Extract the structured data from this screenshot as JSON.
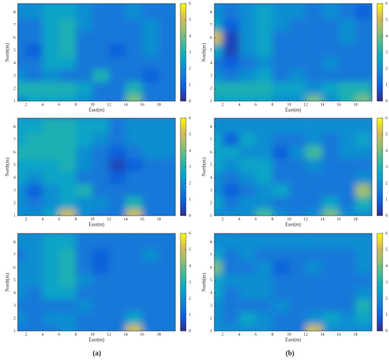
{
  "panel_labels": [
    "(a)",
    "(b)"
  ],
  "chart_data": [
    {
      "type": "heatmap",
      "xlabel": "East(m)",
      "ylabel": "North(m)",
      "x": [
        1,
        3,
        5,
        7,
        9,
        11,
        13,
        15,
        17,
        19
      ],
      "y": [
        1,
        2,
        3,
        4,
        5,
        6,
        7,
        8
      ],
      "xlim": [
        1,
        20
      ],
      "ylim": [
        1,
        8.7
      ],
      "xticks": [
        2,
        4,
        6,
        8,
        10,
        12,
        14,
        16,
        18
      ],
      "yticks": [
        1,
        2,
        3,
        4,
        5,
        6,
        7,
        8
      ],
      "clim": [
        0,
        6
      ],
      "cticks": [
        0,
        1,
        2,
        3,
        4,
        5,
        6
      ],
      "values": [
        [
          2,
          2.5,
          2.5,
          2.5,
          2,
          1.5,
          1.5,
          4,
          1.5,
          1.5
        ],
        [
          3,
          3,
          3,
          3,
          2.5,
          1.5,
          1.5,
          3,
          1.5,
          1.5
        ],
        [
          2,
          1.5,
          2,
          1.5,
          1.5,
          3,
          1.5,
          1.5,
          1,
          1.5
        ],
        [
          1.5,
          1.5,
          2.5,
          2.5,
          1.5,
          1.5,
          1.5,
          1.5,
          1.5,
          1.5
        ],
        [
          1.5,
          1,
          2.5,
          3,
          1.5,
          1.5,
          1,
          1.5,
          2,
          1.5
        ],
        [
          1.5,
          1.5,
          2.5,
          3,
          1.5,
          1.5,
          1.5,
          1.5,
          2,
          1.5
        ],
        [
          1.5,
          1.5,
          2.5,
          3,
          2,
          1.5,
          1.5,
          1.5,
          2,
          1.5
        ],
        [
          2,
          2,
          2.5,
          2.5,
          2,
          1.5,
          1.5,
          2,
          1.5,
          1.5
        ]
      ]
    },
    {
      "type": "heatmap",
      "xlabel": "East(m)",
      "ylabel": "North(m)",
      "x": [
        1,
        3,
        5,
        7,
        9,
        11,
        13,
        15,
        17,
        19
      ],
      "y": [
        1,
        2,
        3,
        4,
        5,
        6,
        7,
        8
      ],
      "xlim": [
        1,
        20
      ],
      "ylim": [
        1,
        8.7
      ],
      "xticks": [
        2,
        4,
        6,
        8,
        10,
        12,
        14,
        16,
        18
      ],
      "yticks": [
        1,
        2,
        3,
        4,
        5,
        6,
        7,
        8
      ],
      "clim": [
        0,
        6
      ],
      "cticks": [
        0,
        1,
        2,
        3,
        4,
        5,
        6
      ],
      "values": [
        [
          2.5,
          2.5,
          2.5,
          2.5,
          2,
          2,
          4,
          2,
          3,
          4
        ],
        [
          3,
          3,
          3,
          3,
          2.5,
          2.5,
          2,
          2.5,
          3,
          3
        ],
        [
          2,
          1.5,
          2,
          2.5,
          1.5,
          2,
          1.5,
          1.5,
          1.5,
          1.5
        ],
        [
          1.5,
          1,
          1.5,
          2,
          1.5,
          1.5,
          1.5,
          2,
          1.5,
          1.5
        ],
        [
          2.5,
          0.5,
          2,
          2.5,
          1.5,
          1.5,
          1.5,
          1.5,
          1.5,
          1.5
        ],
        [
          5,
          0.5,
          2,
          2.5,
          1.5,
          1.5,
          1.5,
          1.5,
          2,
          1.5
        ],
        [
          2.5,
          1,
          2,
          2.5,
          2,
          1.5,
          1.5,
          1.5,
          2,
          1.5
        ],
        [
          2,
          1.5,
          2,
          2.5,
          2,
          2,
          1.5,
          2,
          1.5,
          1
        ]
      ]
    },
    {
      "type": "heatmap",
      "xlabel": "East(m)",
      "ylabel": "North(m)",
      "x": [
        1,
        3,
        5,
        7,
        9,
        11,
        13,
        15,
        17,
        19
      ],
      "y": [
        1,
        2,
        3,
        4,
        5,
        6,
        7,
        8
      ],
      "xlim": [
        1,
        20
      ],
      "ylim": [
        1,
        8.7
      ],
      "xticks": [
        2,
        4,
        6,
        8,
        10,
        12,
        14,
        16,
        18
      ],
      "yticks": [
        1,
        2,
        3,
        4,
        5,
        6,
        7,
        8
      ],
      "clim": [
        0,
        6
      ],
      "cticks": [
        0,
        1,
        2,
        3,
        4,
        5,
        6
      ],
      "values": [
        [
          2,
          2,
          2.5,
          5,
          2,
          1.5,
          1.5,
          5,
          1.5,
          1.5
        ],
        [
          2,
          1.5,
          2,
          2.5,
          2,
          2,
          1.5,
          3,
          1.5,
          1.5
        ],
        [
          2,
          1,
          2,
          2.5,
          3,
          1.5,
          1.5,
          1.5,
          1.5,
          1.5
        ],
        [
          2.5,
          2,
          2.5,
          2.5,
          1.5,
          1.5,
          1,
          1.5,
          1.5,
          1.5
        ],
        [
          2.5,
          2.5,
          2.5,
          3,
          2,
          1.5,
          0.5,
          1,
          1.5,
          1.5
        ],
        [
          3,
          3,
          3,
          3,
          2,
          1.5,
          1,
          1.5,
          2,
          2
        ],
        [
          2.5,
          3,
          3,
          3,
          2.5,
          2,
          1.5,
          2,
          2,
          2
        ],
        [
          2.5,
          2.5,
          3,
          3,
          2.5,
          2.5,
          1.5,
          2,
          2,
          2
        ]
      ]
    },
    {
      "type": "heatmap",
      "xlabel": "East(m)",
      "ylabel": "North(m)",
      "x": [
        1,
        3,
        5,
        7,
        9,
        11,
        13,
        15,
        17,
        19
      ],
      "y": [
        1,
        2,
        3,
        4,
        5,
        6,
        7,
        8
      ],
      "xlim": [
        1,
        20
      ],
      "ylim": [
        1,
        8.7
      ],
      "xticks": [
        2,
        4,
        6,
        8,
        10,
        12,
        14,
        16,
        18
      ],
      "yticks": [
        1,
        2,
        3,
        4,
        5,
        6,
        7,
        8
      ],
      "clim": [
        0,
        6
      ],
      "cticks": [
        0,
        1,
        2,
        3,
        4,
        5,
        6
      ],
      "values": [
        [
          2,
          2,
          2,
          3.5,
          2,
          1.5,
          2,
          4,
          2,
          2
        ],
        [
          2.5,
          1.5,
          2,
          2,
          1.5,
          1.5,
          1.5,
          2.5,
          1.5,
          3
        ],
        [
          2,
          1,
          1.5,
          2,
          2.5,
          1.5,
          1.5,
          1.5,
          1.5,
          4.5
        ],
        [
          2,
          1.5,
          2,
          2.5,
          1.5,
          1.5,
          1.5,
          1.5,
          1.5,
          2
        ],
        [
          2.5,
          2,
          2.5,
          2.5,
          1.5,
          1.5,
          2,
          1.5,
          1.5,
          1.5
        ],
        [
          2.5,
          2.5,
          2,
          2,
          1,
          2,
          3.5,
          1.5,
          2,
          2
        ],
        [
          2.5,
          1,
          2.5,
          2,
          1.5,
          1.5,
          2,
          1.5,
          2,
          2.5
        ],
        [
          2,
          2,
          2,
          2,
          2,
          2,
          2,
          2,
          2,
          2
        ]
      ]
    },
    {
      "type": "heatmap",
      "xlabel": "East(m)",
      "ylabel": "North(m)",
      "x": [
        1,
        3,
        5,
        7,
        9,
        11,
        13,
        15,
        17,
        19
      ],
      "y": [
        1,
        2,
        3,
        4,
        5,
        6,
        7,
        8
      ],
      "xlim": [
        1,
        20
      ],
      "ylim": [
        1,
        8.7
      ],
      "xticks": [
        2,
        4,
        6,
        8,
        10,
        12,
        14,
        16,
        18
      ],
      "yticks": [
        1,
        2,
        3,
        4,
        5,
        6,
        7,
        8
      ],
      "clim": [
        0,
        6
      ],
      "cticks": [
        0,
        1,
        2,
        3,
        4,
        5,
        6
      ],
      "values": [
        [
          1.5,
          1.5,
          1.5,
          2,
          1.5,
          1.5,
          1.5,
          5,
          1.5,
          1.5
        ],
        [
          2,
          1.5,
          2,
          2,
          1.5,
          1.5,
          1.5,
          2.5,
          1.5,
          1.5
        ],
        [
          1.5,
          1.5,
          1.5,
          1.5,
          2,
          1.5,
          1.5,
          1.5,
          1.5,
          1.5
        ],
        [
          2,
          1.5,
          2.5,
          2.5,
          1.5,
          1.5,
          1.5,
          1.5,
          1.5,
          1.5
        ],
        [
          2,
          2,
          2.5,
          3,
          2,
          1.5,
          1.5,
          1.5,
          1.5,
          1.5
        ],
        [
          2,
          2,
          2.5,
          3,
          1.5,
          1,
          1.5,
          1.5,
          1.5,
          1.5
        ],
        [
          1.5,
          2,
          2.5,
          3,
          1.5,
          1,
          1.5,
          1.5,
          2,
          1.5
        ],
        [
          2,
          2,
          2.5,
          2.5,
          1.5,
          1.5,
          1.5,
          1.5,
          1.5,
          1.5
        ]
      ]
    },
    {
      "type": "heatmap",
      "xlabel": "East(m)",
      "ylabel": "North(m)",
      "x": [
        1,
        3,
        5,
        7,
        9,
        11,
        13,
        15,
        17,
        19
      ],
      "y": [
        1,
        2,
        3,
        4,
        5,
        6,
        7,
        8
      ],
      "xlim": [
        1,
        20
      ],
      "ylim": [
        1,
        8.7
      ],
      "xticks": [
        2,
        4,
        6,
        8,
        10,
        12,
        14,
        16,
        18
      ],
      "yticks": [
        1,
        2,
        3,
        4,
        5,
        6,
        7,
        8
      ],
      "clim": [
        0,
        6
      ],
      "cticks": [
        0,
        1,
        2,
        3,
        4,
        5,
        6
      ],
      "values": [
        [
          2,
          2,
          2,
          2,
          1.5,
          1.5,
          5,
          2,
          2,
          2
        ],
        [
          2,
          1.5,
          2.5,
          2,
          1.5,
          1.5,
          2,
          2.5,
          2,
          2.5
        ],
        [
          2,
          1.5,
          1.5,
          1.5,
          2,
          1.5,
          1.5,
          1.5,
          1.5,
          3
        ],
        [
          2.5,
          1.5,
          2,
          2,
          1.5,
          1.5,
          1.5,
          1.5,
          1.5,
          2
        ],
        [
          2.5,
          2,
          2,
          2,
          1.5,
          1.5,
          1.5,
          1.5,
          1.5,
          1.5
        ],
        [
          4,
          1.5,
          1.5,
          2,
          1,
          1.5,
          2,
          1.5,
          1.5,
          2
        ],
        [
          2.5,
          1.5,
          2,
          1.5,
          1.5,
          1.5,
          1.5,
          1.5,
          1.5,
          2
        ],
        [
          2,
          2,
          2,
          2,
          2,
          2,
          2,
          2,
          2,
          2
        ]
      ]
    }
  ]
}
